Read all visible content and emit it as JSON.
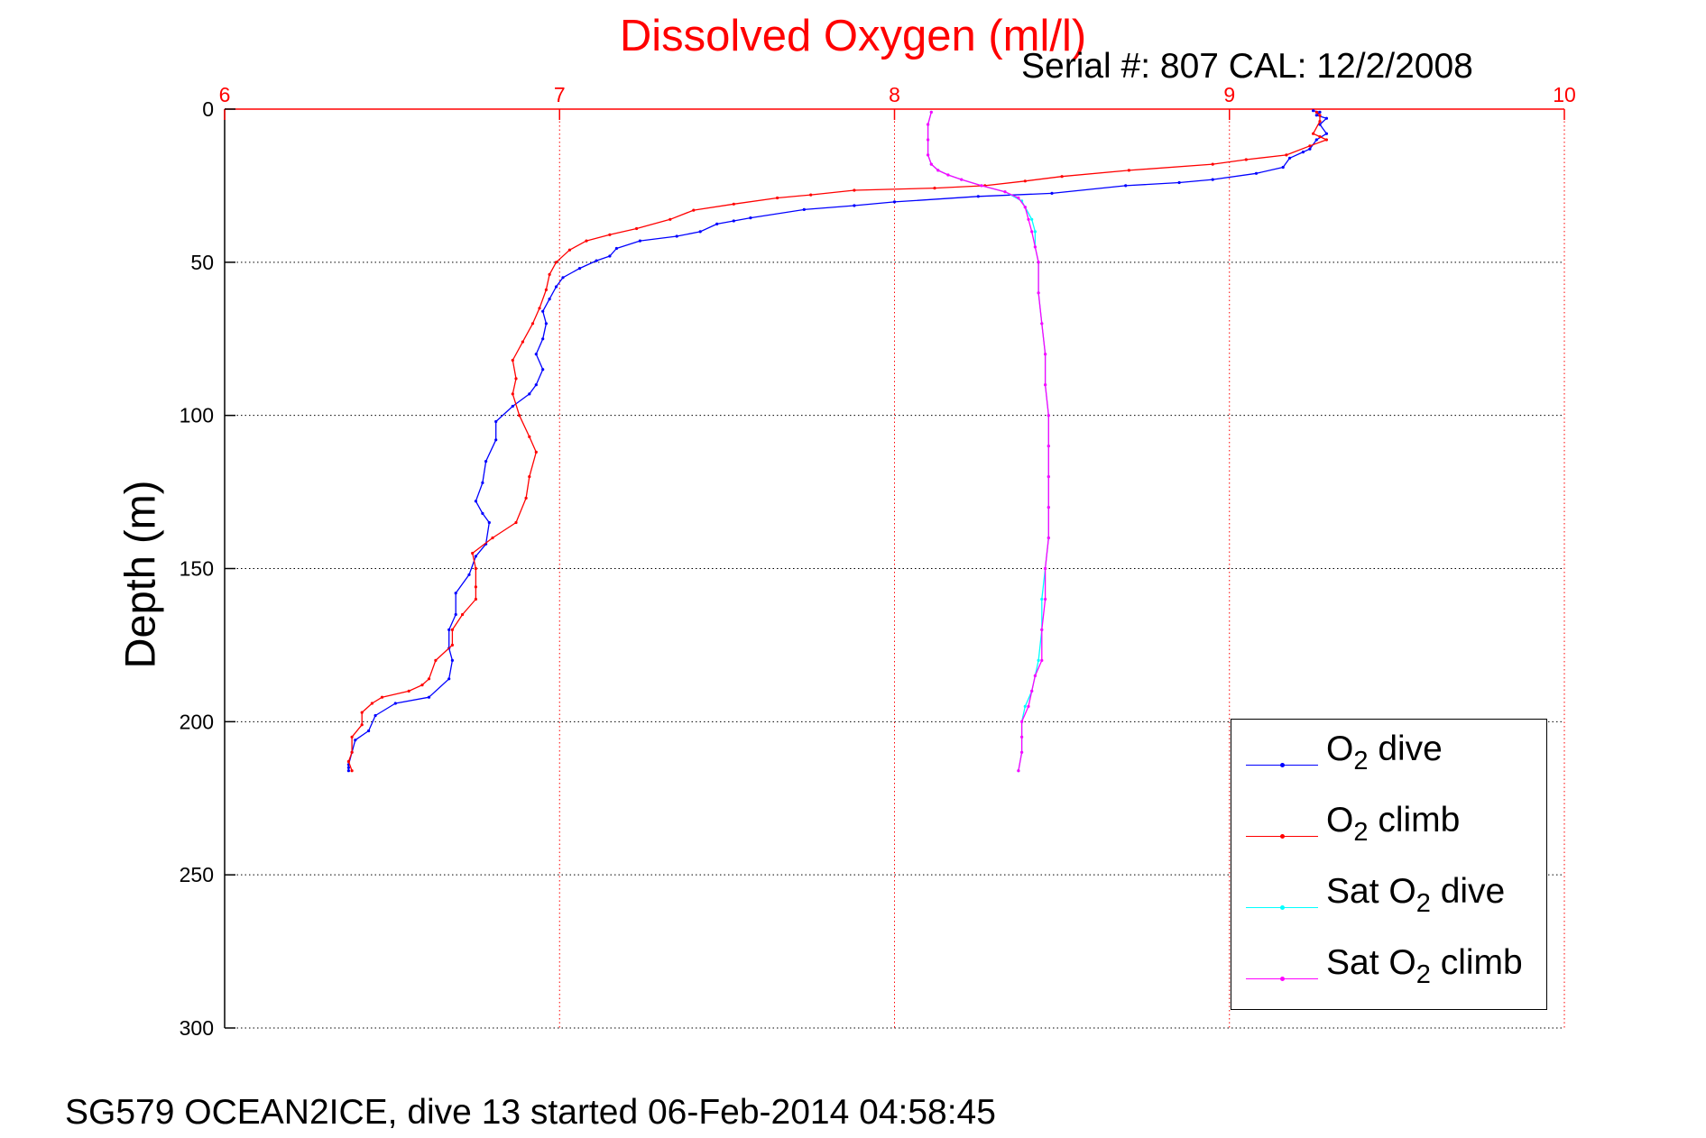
{
  "title": "Dissolved Oxygen (ml/l)",
  "serial_info": "Serial #: 807  CAL: 12/2/2008",
  "footer": "SG579 OCEAN2ICE, dive 13 started 06-Feb-2014 04:58:45",
  "colors": {
    "title": "#ff0000",
    "x_axis": "#ff0000",
    "o2_dive": "#0000ff",
    "o2_climb": "#ff0000",
    "sat_o2_dive": "#00ffff",
    "sat_o2_climb": "#ff00ff"
  },
  "chart_data": {
    "type": "line",
    "title": "Dissolved Oxygen (ml/l)",
    "xlabel": "",
    "ylabel": "Depth (m)",
    "xlim": [
      6,
      10
    ],
    "ylim": [
      0,
      300
    ],
    "y_reversed": true,
    "x_axis_position": "top",
    "x_ticks": [
      6,
      7,
      8,
      9,
      10
    ],
    "y_ticks": [
      0,
      50,
      100,
      150,
      200,
      250,
      300
    ],
    "grid": true,
    "legend_position": "bottom-right",
    "series": [
      {
        "name": "O2 dive",
        "color": "#0000ff",
        "points": [
          [
            9.25,
            0.5
          ],
          [
            9.27,
            1
          ],
          [
            9.26,
            2
          ],
          [
            9.29,
            3
          ],
          [
            9.27,
            5
          ],
          [
            9.29,
            8
          ],
          [
            9.26,
            10
          ],
          [
            9.24,
            13
          ],
          [
            9.22,
            14
          ],
          [
            9.18,
            16
          ],
          [
            9.16,
            19
          ],
          [
            9.08,
            21
          ],
          [
            8.95,
            23
          ],
          [
            8.85,
            24
          ],
          [
            8.69,
            25
          ],
          [
            8.47,
            27.5
          ],
          [
            8.25,
            28.5
          ],
          [
            8.0,
            30.3
          ],
          [
            7.88,
            31.5
          ],
          [
            7.73,
            32.8
          ],
          [
            7.57,
            35.5
          ],
          [
            7.52,
            36.5
          ],
          [
            7.47,
            37.5
          ],
          [
            7.42,
            40
          ],
          [
            7.35,
            41.5
          ],
          [
            7.24,
            43
          ],
          [
            7.17,
            45.5
          ],
          [
            7.15,
            48
          ],
          [
            7.11,
            49.5
          ],
          [
            7.06,
            52
          ],
          [
            7.01,
            55
          ],
          [
            6.99,
            58
          ],
          [
            6.97,
            62
          ],
          [
            6.95,
            66
          ],
          [
            6.96,
            70
          ],
          [
            6.95,
            75
          ],
          [
            6.93,
            80
          ],
          [
            6.95,
            85
          ],
          [
            6.93,
            90
          ],
          [
            6.91,
            93
          ],
          [
            6.86,
            97
          ],
          [
            6.81,
            102
          ],
          [
            6.81,
            108
          ],
          [
            6.78,
            115
          ],
          [
            6.77,
            122
          ],
          [
            6.75,
            128
          ],
          [
            6.77,
            132
          ],
          [
            6.79,
            135
          ],
          [
            6.78,
            142
          ],
          [
            6.75,
            146
          ],
          [
            6.73,
            152
          ],
          [
            6.69,
            158
          ],
          [
            6.69,
            165
          ],
          [
            6.67,
            170
          ],
          [
            6.67,
            176
          ],
          [
            6.68,
            180
          ],
          [
            6.67,
            186
          ],
          [
            6.61,
            192
          ],
          [
            6.51,
            194
          ],
          [
            6.45,
            198
          ],
          [
            6.43,
            203
          ],
          [
            6.39,
            206
          ],
          [
            6.38,
            210
          ],
          [
            6.37,
            214
          ],
          [
            6.37,
            215
          ],
          [
            6.37,
            216
          ]
        ]
      },
      {
        "name": "O2 climb",
        "color": "#ff0000",
        "points": [
          [
            6.38,
            216
          ],
          [
            6.37,
            213
          ],
          [
            6.38,
            210
          ],
          [
            6.38,
            205
          ],
          [
            6.41,
            201
          ],
          [
            6.41,
            197
          ],
          [
            6.44,
            194
          ],
          [
            6.47,
            192
          ],
          [
            6.55,
            190
          ],
          [
            6.59,
            188
          ],
          [
            6.61,
            186
          ],
          [
            6.63,
            180
          ],
          [
            6.68,
            175
          ],
          [
            6.68,
            170
          ],
          [
            6.71,
            165
          ],
          [
            6.75,
            160
          ],
          [
            6.75,
            156
          ],
          [
            6.75,
            150
          ],
          [
            6.74,
            145
          ],
          [
            6.8,
            140
          ],
          [
            6.87,
            135
          ],
          [
            6.9,
            127
          ],
          [
            6.91,
            120
          ],
          [
            6.93,
            112
          ],
          [
            6.91,
            107
          ],
          [
            6.88,
            100
          ],
          [
            6.86,
            93
          ],
          [
            6.87,
            88
          ],
          [
            6.86,
            82
          ],
          [
            6.89,
            76
          ],
          [
            6.92,
            70
          ],
          [
            6.94,
            65
          ],
          [
            6.96,
            59
          ],
          [
            6.97,
            54
          ],
          [
            6.99,
            50
          ],
          [
            7.03,
            46
          ],
          [
            7.08,
            43
          ],
          [
            7.15,
            41
          ],
          [
            7.23,
            39
          ],
          [
            7.33,
            36
          ],
          [
            7.4,
            33
          ],
          [
            7.52,
            31
          ],
          [
            7.65,
            29
          ],
          [
            7.75,
            28
          ],
          [
            7.88,
            26.5
          ],
          [
            8.12,
            25.8
          ],
          [
            8.27,
            25
          ],
          [
            8.39,
            23.5
          ],
          [
            8.5,
            22
          ],
          [
            8.7,
            20
          ],
          [
            8.95,
            18
          ],
          [
            9.05,
            16.5
          ],
          [
            9.17,
            15
          ],
          [
            9.24,
            12
          ],
          [
            9.29,
            10
          ],
          [
            9.27,
            9
          ],
          [
            9.25,
            8
          ],
          [
            9.27,
            4
          ],
          [
            9.27,
            2
          ],
          [
            9.26,
            1
          ]
        ]
      },
      {
        "name": "Sat O2 dive",
        "color": "#00ffff",
        "points": [
          [
            8.11,
            1
          ],
          [
            8.1,
            5
          ],
          [
            8.1,
            10
          ],
          [
            8.1,
            15
          ],
          [
            8.11,
            18
          ],
          [
            8.13,
            20
          ],
          [
            8.16,
            21.5
          ],
          [
            8.2,
            23
          ],
          [
            8.26,
            25
          ],
          [
            8.33,
            27
          ],
          [
            8.38,
            30
          ],
          [
            8.39,
            32
          ],
          [
            8.41,
            36
          ],
          [
            8.42,
            40
          ],
          [
            8.42,
            45
          ],
          [
            8.43,
            50
          ],
          [
            8.43,
            60
          ],
          [
            8.44,
            70
          ],
          [
            8.45,
            80
          ],
          [
            8.45,
            90
          ],
          [
            8.46,
            100
          ],
          [
            8.46,
            110
          ],
          [
            8.46,
            120
          ],
          [
            8.46,
            130
          ],
          [
            8.46,
            140
          ],
          [
            8.45,
            150
          ],
          [
            8.44,
            160
          ],
          [
            8.44,
            170
          ],
          [
            8.43,
            180
          ],
          [
            8.42,
            185
          ],
          [
            8.41,
            190
          ],
          [
            8.39,
            195
          ],
          [
            8.38,
            200
          ],
          [
            8.38,
            205
          ],
          [
            8.38,
            210
          ],
          [
            8.37,
            216
          ]
        ]
      },
      {
        "name": "Sat O2 climb",
        "color": "#ff00ff",
        "points": [
          [
            8.37,
            216
          ],
          [
            8.38,
            210
          ],
          [
            8.38,
            205
          ],
          [
            8.38,
            200
          ],
          [
            8.4,
            195
          ],
          [
            8.41,
            190
          ],
          [
            8.42,
            185
          ],
          [
            8.44,
            180
          ],
          [
            8.44,
            170
          ],
          [
            8.45,
            160
          ],
          [
            8.45,
            150
          ],
          [
            8.46,
            140
          ],
          [
            8.46,
            130
          ],
          [
            8.46,
            120
          ],
          [
            8.46,
            110
          ],
          [
            8.46,
            100
          ],
          [
            8.45,
            90
          ],
          [
            8.45,
            80
          ],
          [
            8.44,
            70
          ],
          [
            8.43,
            60
          ],
          [
            8.43,
            50
          ],
          [
            8.42,
            45
          ],
          [
            8.41,
            40
          ],
          [
            8.4,
            36
          ],
          [
            8.39,
            32
          ],
          [
            8.37,
            29
          ],
          [
            8.33,
            27
          ],
          [
            8.26,
            25
          ],
          [
            8.2,
            23
          ],
          [
            8.16,
            21.5
          ],
          [
            8.13,
            20
          ],
          [
            8.11,
            18
          ],
          [
            8.1,
            15
          ],
          [
            8.1,
            10
          ],
          [
            8.1,
            5
          ],
          [
            8.11,
            1
          ]
        ]
      }
    ]
  }
}
